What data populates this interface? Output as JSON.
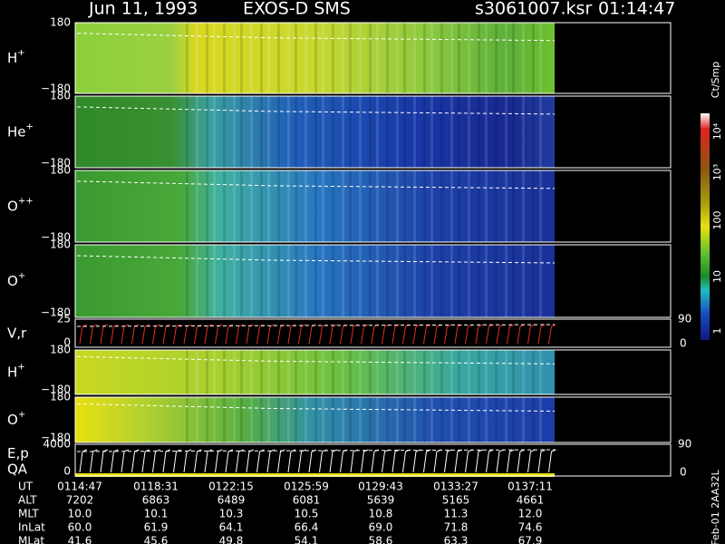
{
  "header": {
    "date": "Jun 11, 1993",
    "instrument": "EXOS-D SMS",
    "file": "s3061007.ksr",
    "time": "01:14:47"
  },
  "panels": [
    {
      "label": "H",
      "sup": "+",
      "top": "180",
      "bottom": "−180"
    },
    {
      "label": "He",
      "sup": "+",
      "top": "180",
      "bottom": "−180"
    },
    {
      "label": "O",
      "sup": "++",
      "top": "180",
      "bottom": "−180"
    },
    {
      "label": "O",
      "sup": "+",
      "top": "180",
      "bottom": "−180"
    },
    {
      "label": "V,r",
      "top": "25",
      "bottom": "0",
      "right_top": "90",
      "right_bottom": "0"
    },
    {
      "label": "H",
      "sup": "+",
      "top": "180",
      "bottom": "−180"
    },
    {
      "label": "O",
      "sup": "+",
      "top": "180",
      "bottom": "−180"
    },
    {
      "label": "E,p",
      "label2": "QA",
      "top": "4000",
      "bottom": "0",
      "right_top": "90",
      "right_bottom": "0"
    }
  ],
  "colorbar": {
    "unit": "Ct/Smp",
    "ticks": [
      "10⁴",
      "10³",
      "100",
      "10",
      "1"
    ]
  },
  "footer": {
    "rows": [
      [
        "UT",
        "0114:47",
        "0118:31",
        "0122:15",
        "0125:59",
        "0129:43",
        "0133:27",
        "0137:11"
      ],
      [
        "ALT",
        "7202",
        "6863",
        "6489",
        "6081",
        "5639",
        "5165",
        "4661"
      ],
      [
        "MLT",
        "10.0",
        "10.1",
        "10.3",
        "10.5",
        "10.8",
        "11.3",
        "12.0"
      ],
      [
        "InLat",
        "60.0",
        "61.9",
        "64.1",
        "66.4",
        "69.0",
        "71.8",
        "74.6"
      ],
      [
        "MLat",
        "41.6",
        "45.6",
        "49.8",
        "54.1",
        "58.6",
        "63.3",
        "67.9"
      ]
    ]
  },
  "stamp": "Feb-01 2AA32L"
}
